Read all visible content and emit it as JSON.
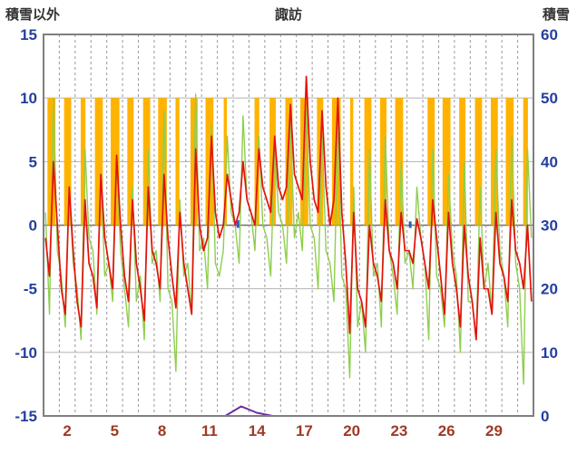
{
  "chart_data": {
    "type": "line",
    "title": "諏訪",
    "left_axis": {
      "title": "積雪以外",
      "min": -15,
      "max": 15,
      "step": 5,
      "ticks": [
        15,
        10,
        5,
        0,
        -5,
        -10,
        -15
      ],
      "label_color": "#243FA0"
    },
    "right_axis": {
      "title": "積雪",
      "min": 0,
      "max": 60,
      "step": 10,
      "ticks": [
        60,
        50,
        40,
        30,
        20,
        10,
        0
      ],
      "label_color": "#243FA0"
    },
    "x_axis": {
      "days": 31,
      "tick_days": [
        2,
        5,
        8,
        11,
        14,
        17,
        20,
        23,
        26,
        29
      ],
      "label_color": "#9E3A26"
    },
    "grid": {
      "h_color": "#b3b3b3",
      "zero_color": "#6e6e6e",
      "v_color": "#9a9a9a",
      "frame_color": "#7f7f7f"
    },
    "series": [
      {
        "name": "sunshine-bars",
        "type": "bar",
        "color": "#FFB300",
        "bar_base": 0,
        "bar_top": 10,
        "bars": [
          [
            1,
            0.25,
            0.5
          ],
          [
            2,
            0.3,
            0.45
          ],
          [
            3,
            0.35,
            0.3
          ],
          [
            4,
            0.25,
            0.5
          ],
          [
            5,
            0.25,
            0.55
          ],
          [
            6,
            0.3,
            0.4
          ],
          [
            7,
            0.3,
            0.45
          ],
          [
            8,
            0.25,
            0.55
          ],
          [
            9,
            0.35,
            0.25
          ],
          [
            10,
            0.3,
            0.45
          ],
          [
            11,
            0.25,
            0.5
          ],
          [
            12,
            0.4,
            0.2
          ],
          [
            14,
            0.35,
            0.3
          ],
          [
            15,
            0.3,
            0.4
          ],
          [
            16,
            0.3,
            0.45
          ],
          [
            17,
            0.25,
            0.5
          ],
          [
            18,
            0.3,
            0.4
          ],
          [
            19,
            0.25,
            0.55
          ],
          [
            20,
            0.4,
            0.2
          ],
          [
            21,
            0.3,
            0.45
          ],
          [
            22,
            0.3,
            0.4
          ],
          [
            23,
            0.25,
            0.5
          ],
          [
            25,
            0.3,
            0.45
          ],
          [
            26,
            0.25,
            0.5
          ],
          [
            27,
            0.3,
            0.4
          ],
          [
            28,
            0.3,
            0.45
          ],
          [
            29,
            0.3,
            0.45
          ],
          [
            30,
            0.25,
            0.5
          ],
          [
            31,
            0.35,
            0.3
          ]
        ]
      },
      {
        "name": "green-line",
        "type": "line",
        "color": "#8FCE4E",
        "width": 1.4,
        "points_per_day": 4,
        "values": [
          1,
          -7,
          10,
          -2,
          -4,
          -8,
          3,
          -3,
          -5,
          -9,
          6,
          -1,
          -2,
          -7,
          4,
          -4,
          -3,
          -6,
          5,
          -2,
          -5,
          -8,
          3,
          -6,
          -4,
          -9,
          6,
          -3,
          -2,
          -6,
          9,
          -5,
          -6,
          -11.5,
          2,
          -4,
          -3,
          -7,
          10.3,
          -2,
          -1,
          -5,
          8,
          -3,
          -4,
          -2,
          7,
          1,
          0,
          -3,
          8.6,
          2,
          1,
          -2,
          7,
          0,
          -1,
          -4,
          6,
          1,
          0,
          -3,
          8,
          -1,
          1,
          -2,
          9,
          0,
          -1,
          -5,
          7,
          -2,
          -3,
          -6,
          8,
          -4,
          -5,
          -12,
          3,
          -8,
          -6,
          -10,
          6,
          -4,
          -3,
          -8,
          7,
          -2,
          -4,
          -7,
          5,
          -3,
          -2,
          -5,
          3,
          -1,
          -3,
          -9,
          6,
          -4,
          -5,
          -8,
          4,
          -2,
          -4,
          -10,
          5,
          -6,
          -6,
          -9,
          3,
          -5,
          -3,
          -7,
          6,
          -2,
          -4,
          -8,
          7,
          -3,
          -5,
          -12.5,
          6,
          -1
        ]
      },
      {
        "name": "red-line",
        "type": "line",
        "color": "#E3120B",
        "width": 1.7,
        "points_per_day": 4,
        "values": [
          -1,
          -4,
          5,
          0,
          -5,
          -7,
          3,
          -2,
          -6,
          -8,
          2,
          -3,
          -4,
          -6.5,
          4,
          -1,
          -3,
          -5,
          5.5,
          0,
          -4,
          -6,
          2,
          -3,
          -5,
          -7.5,
          3,
          -2,
          -3,
          -5,
          4,
          -1,
          -4,
          -6.5,
          1,
          -3,
          -5,
          -7,
          6,
          0,
          -2,
          -1,
          7,
          1,
          -1,
          0,
          4,
          2,
          0,
          1,
          5,
          2,
          1,
          0,
          6,
          3,
          2,
          1,
          7,
          3,
          2,
          3,
          9.5,
          4,
          3,
          2,
          11.7,
          5,
          2,
          1,
          9,
          3,
          0,
          2,
          10,
          1,
          -3,
          -8.5,
          1,
          -5,
          -6,
          -8,
          0,
          -3,
          -4,
          -6,
          2,
          -2,
          -3,
          -5,
          1,
          -2,
          -2,
          -3,
          0.5,
          -1,
          -3,
          -5,
          2,
          -1,
          -4,
          -7,
          1,
          -3,
          -5,
          -8,
          0,
          -4,
          -6,
          -9,
          -1,
          -5,
          -5,
          -7,
          1,
          -3,
          -4,
          -6,
          2,
          -2,
          -3,
          -5,
          0,
          -6
        ]
      },
      {
        "name": "precip-marks",
        "type": "tick",
        "color": "#2D5BC8",
        "marks": [
          {
            "day": 13.3,
            "value": 0.4
          },
          {
            "day": 24.2,
            "value": 0.3
          }
        ]
      },
      {
        "name": "snow-depth-line",
        "type": "line",
        "axis": "right",
        "color": "#7030A0",
        "width": 2,
        "points_per_day": 1,
        "values": [
          0,
          0,
          0,
          0,
          0,
          0,
          0,
          0,
          0,
          0,
          0,
          0,
          1.5,
          0.5,
          0,
          0,
          0,
          0,
          0,
          0,
          0,
          0,
          0,
          0,
          0,
          0,
          0,
          0,
          0,
          0,
          0
        ]
      }
    ]
  }
}
